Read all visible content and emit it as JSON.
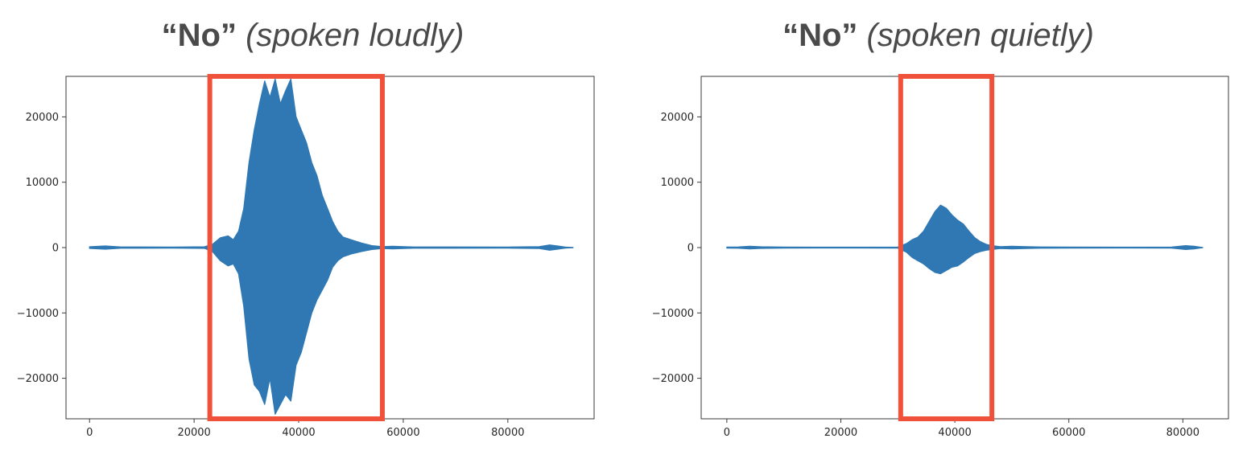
{
  "chart_data": [
    {
      "type": "line",
      "title_word": "“No”",
      "title_note": "(spoken loudly)",
      "xlabel": "",
      "ylabel": "",
      "xlim": [
        -4500,
        96500
      ],
      "ylim": [
        -26200,
        26200
      ],
      "xticks": [
        0,
        20000,
        40000,
        60000,
        80000
      ],
      "xtick_labels": [
        "0",
        "20000",
        "40000",
        "60000",
        "80000"
      ],
      "yticks": [
        20000,
        10000,
        0,
        -10000,
        -20000
      ],
      "ytick_labels": [
        "20000",
        "10000",
        "0",
        "−10000",
        "−20000"
      ],
      "grid": false,
      "line_color": "#2f78b4",
      "highlight_color": "#f0513a",
      "series": [
        {
          "x": [
            0,
            3000,
            6000,
            10000,
            16000,
            22000,
            23500,
            25000,
            26500,
            27500,
            28500,
            29500,
            30500,
            31500,
            32500,
            33500,
            34500,
            35500,
            36500,
            37500,
            38500,
            39500,
            40500,
            41500,
            42500,
            43500,
            44500,
            45500,
            46500,
            47500,
            48500,
            50000,
            52000,
            54000,
            56000,
            58000,
            62000,
            70000,
            80000,
            86000,
            88000,
            89500,
            91000,
            92500
          ],
          "upper": [
            120,
            250,
            100,
            100,
            80,
            120,
            500,
            1500,
            1800,
            1200,
            2500,
            6000,
            13000,
            18000,
            22000,
            25500,
            23000,
            25800,
            22000,
            24000,
            25800,
            20000,
            18000,
            16000,
            13000,
            11000,
            8000,
            6000,
            4000,
            2500,
            1600,
            1200,
            700,
            300,
            150,
            200,
            100,
            100,
            80,
            150,
            400,
            250,
            80,
            0
          ],
          "lower": [
            -120,
            -250,
            -100,
            -100,
            -80,
            -120,
            -600,
            -2000,
            -2800,
            -2500,
            -4000,
            -9000,
            -17000,
            -21000,
            -22000,
            -24000,
            -20000,
            -25500,
            -24000,
            -22500,
            -23500,
            -18000,
            -16000,
            -13000,
            -10000,
            -8000,
            -6500,
            -5000,
            -3000,
            -2000,
            -1400,
            -1000,
            -600,
            -300,
            -150,
            -200,
            -100,
            -100,
            -80,
            -150,
            -400,
            -250,
            -80,
            0
          ]
        }
      ],
      "highlight": [
        23000,
        56000
      ]
    },
    {
      "type": "line",
      "title_word": "“No”",
      "title_note": "(spoken quietly)",
      "xlabel": "",
      "ylabel": "",
      "xlim": [
        -4500,
        88000
      ],
      "ylim": [
        -26200,
        26200
      ],
      "xticks": [
        0,
        20000,
        40000,
        60000,
        80000
      ],
      "xtick_labels": [
        "0",
        "20000",
        "40000",
        "60000",
        "80000"
      ],
      "yticks": [
        20000,
        10000,
        0,
        -10000,
        -20000
      ],
      "ytick_labels": [
        "20000",
        "10000",
        "0",
        "−10000",
        "−20000"
      ],
      "grid": false,
      "line_color": "#2f78b4",
      "highlight_color": "#f0513a",
      "series": [
        {
          "x": [
            0,
            2000,
            4000,
            6000,
            10000,
            20000,
            30000,
            31500,
            32500,
            33500,
            34500,
            35500,
            36500,
            37500,
            38500,
            39500,
            40500,
            41500,
            42500,
            43500,
            44500,
            45500,
            46500,
            48000,
            50000,
            55000,
            60000,
            70000,
            78000,
            80500,
            82000,
            83500
          ],
          "upper": [
            80,
            100,
            200,
            120,
            80,
            60,
            80,
            600,
            1200,
            1600,
            2500,
            4000,
            5500,
            6500,
            6000,
            5000,
            4200,
            3600,
            2500,
            1500,
            900,
            500,
            300,
            150,
            200,
            100,
            80,
            60,
            80,
            300,
            200,
            0
          ],
          "lower": [
            -80,
            -100,
            -200,
            -120,
            -80,
            -60,
            -80,
            -700,
            -1500,
            -2000,
            -2500,
            -3200,
            -3800,
            -4000,
            -3500,
            -3000,
            -2800,
            -2200,
            -1500,
            -900,
            -600,
            -400,
            -300,
            -150,
            -200,
            -100,
            -80,
            -60,
            -80,
            -300,
            -200,
            0
          ]
        }
      ],
      "highlight": [
        30500,
        46500
      ]
    }
  ]
}
